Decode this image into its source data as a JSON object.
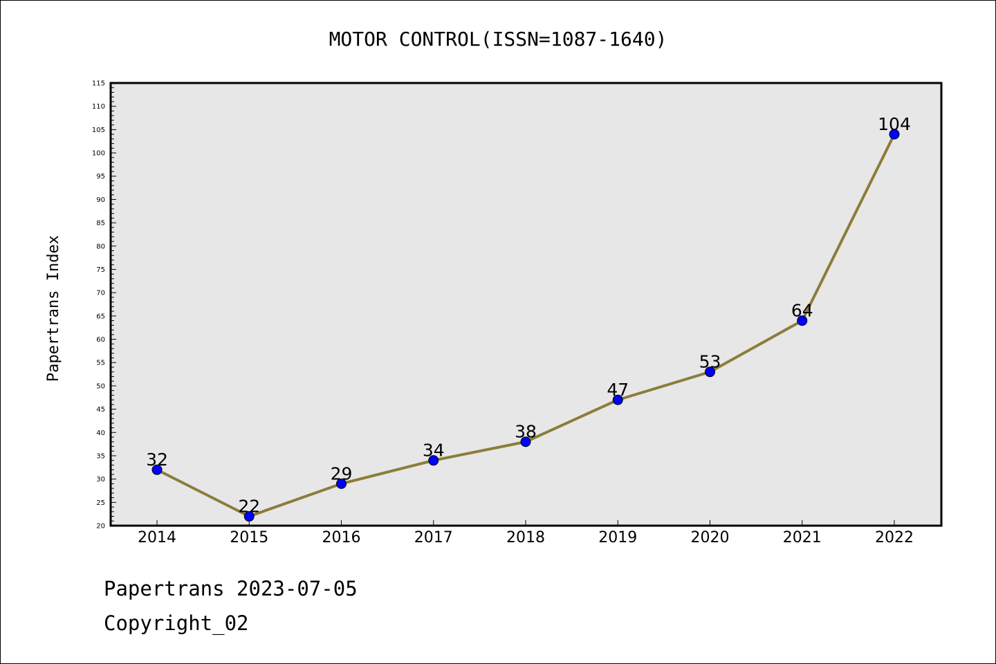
{
  "chart_data": {
    "type": "line",
    "title": "MOTOR CONTROL(ISSN=1087-1640)",
    "ylabel": "Papertrans Index",
    "xlabel": "",
    "categories": [
      "2014",
      "2015",
      "2016",
      "2017",
      "2018",
      "2019",
      "2020",
      "2021",
      "2022"
    ],
    "series": [
      {
        "values": [
          32,
          22,
          29,
          34,
          38,
          47,
          53,
          64,
          104
        ]
      }
    ],
    "data_labels": [
      "32",
      "22",
      "29",
      "34",
      "38",
      "47",
      "53",
      "64",
      "104"
    ],
    "ylim": [
      20,
      115
    ],
    "yticks": [
      20,
      25,
      30,
      35,
      40,
      45,
      50,
      55,
      60,
      65,
      70,
      75,
      80,
      85,
      90,
      95,
      100,
      105,
      110,
      115
    ],
    "ytick_labels": [
      "20",
      "25",
      "30",
      "35",
      "40",
      "45",
      "50",
      "55",
      "60",
      "65",
      "70",
      "75",
      "80",
      "85",
      "90",
      "95",
      "100",
      "105",
      "110",
      "115"
    ],
    "grid": false,
    "colors": {
      "line": "#8b7d3a",
      "marker": "#0000ff",
      "plot_background": "#e7e7e7"
    }
  },
  "footer": {
    "line1": "Papertrans 2023-07-05",
    "line2": "Copyright_02"
  }
}
